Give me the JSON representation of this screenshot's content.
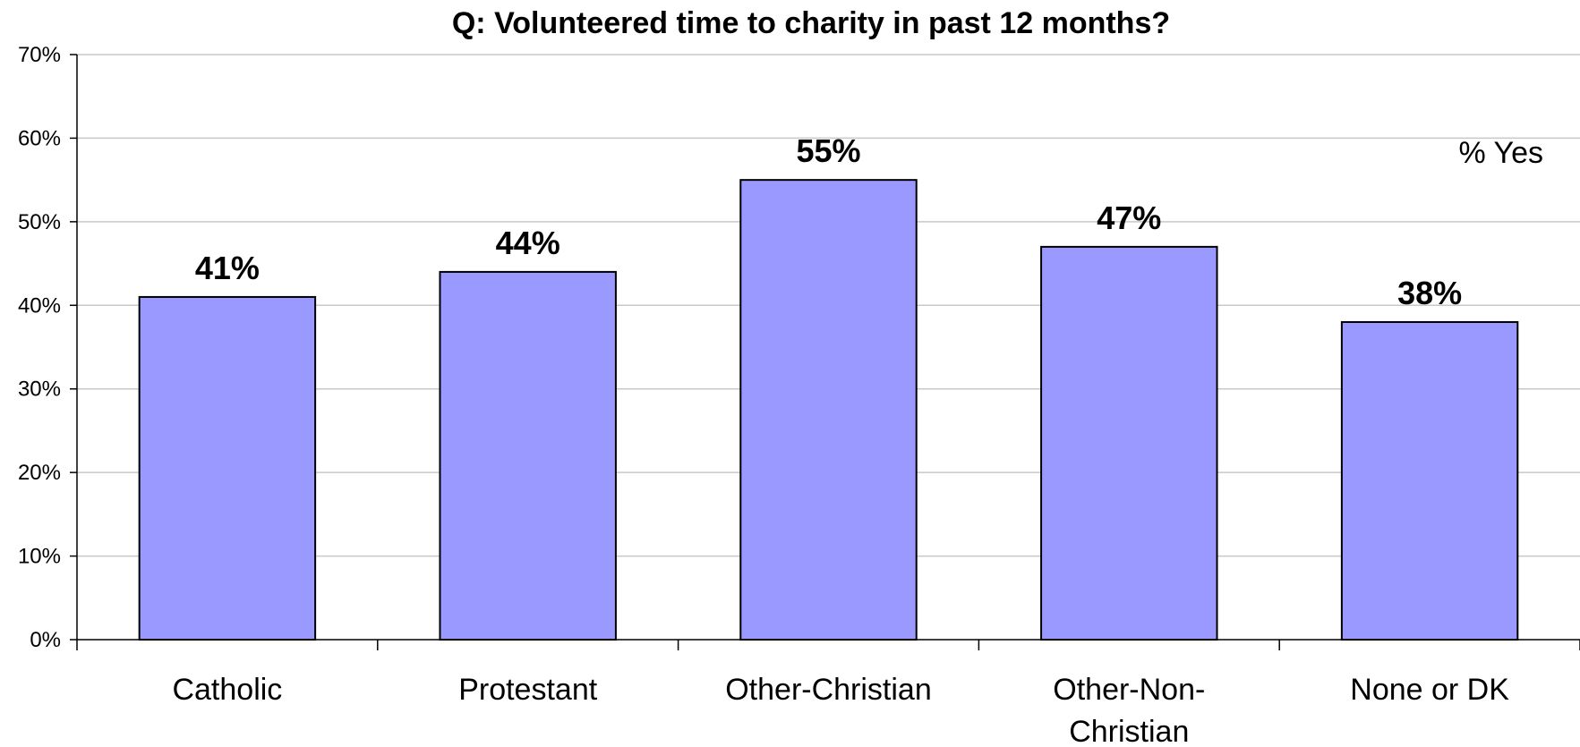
{
  "chart_data": {
    "type": "bar",
    "title": "Q: Volunteered time to charity in past 12 months?",
    "annotation": "% Yes",
    "categories": [
      "Catholic",
      "Protestant",
      "Other-Christian",
      "Other-Non-Christian",
      "None or DK"
    ],
    "category_lines": [
      [
        "Catholic"
      ],
      [
        "Protestant"
      ],
      [
        "Other-Christian"
      ],
      [
        "Other-Non-",
        "Christian"
      ],
      [
        "None or DK"
      ]
    ],
    "values": [
      41,
      44,
      55,
      47,
      38
    ],
    "data_labels": [
      "41%",
      "44%",
      "55%",
      "47%",
      "38%"
    ],
    "ylim": [
      0,
      70
    ],
    "yticks": [
      0,
      10,
      20,
      30,
      40,
      50,
      60,
      70
    ],
    "ytick_labels": [
      "0%",
      "10%",
      "20%",
      "30%",
      "40%",
      "50%",
      "60%",
      "70%"
    ],
    "xlabel": "",
    "ylabel": "",
    "grid": true,
    "legend": "none",
    "colors": {
      "bar_fill": "#9999FF",
      "bar_stroke": "#000000",
      "grid": "#C8C8C8",
      "axis": "#000000"
    }
  }
}
